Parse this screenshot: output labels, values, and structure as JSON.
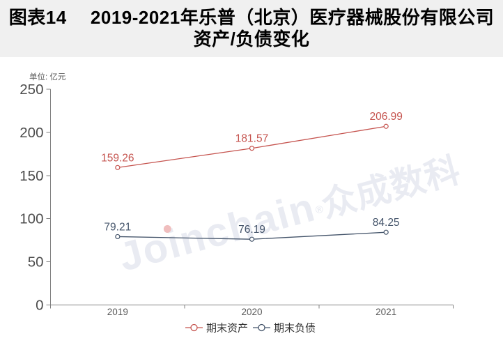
{
  "header": {
    "title": "图表14　 2019-2021年乐普（北京）医疗器械股份有限公司资产/负债变化"
  },
  "watermark": {
    "brand": "Joinchain",
    "reg": "®",
    "suffix": "众成数科",
    "text_color": "#e9ebf2",
    "dot_color": "#f0bebe"
  },
  "chart_data": {
    "type": "line",
    "title": "图表14 2019-2021年乐普（北京）医疗器械股份有限公司资产/负债变化",
    "unit_label": "单位: 亿元",
    "categories": [
      "2019",
      "2020",
      "2021"
    ],
    "series": [
      {
        "id": "period-end-assets",
        "name": "期末资产",
        "values": [
          159.26,
          181.57,
          206.99
        ],
        "color": "#c5534e"
      },
      {
        "id": "period-end-liabilities",
        "name": "期末负债",
        "values": [
          79.21,
          76.19,
          84.25
        ],
        "color": "#44546a"
      }
    ],
    "ylim": [
      0,
      250
    ],
    "yticks": [
      0,
      50,
      100,
      150,
      200,
      250
    ],
    "grid": false,
    "legend_position": "bottom",
    "colors": {
      "axis": "#808080",
      "y_tick_label": "#4d4d4d",
      "x_tick_label": "#595959",
      "legend_text": "#333333",
      "title_bg": "#f0f0f0"
    }
  }
}
